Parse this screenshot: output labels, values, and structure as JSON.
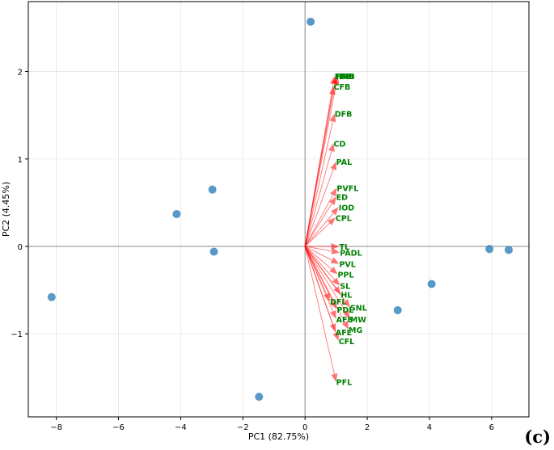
{
  "panel_label": "(c)",
  "chart_data": {
    "type": "scatter",
    "xlabel": "PC1 (82.75%)",
    "ylabel": "PC2 (4.45%)",
    "xlim": [
      -8.9,
      7.2
    ],
    "ylim": [
      -1.95,
      2.8
    ],
    "xticks": [
      -8,
      -6,
      -4,
      -2,
      0,
      2,
      4,
      6
    ],
    "yticks": [
      -1,
      0,
      1,
      2
    ],
    "grid": true,
    "colors": {
      "points": "#1f77b4",
      "arrows": "#ff0000",
      "labels": "#008000"
    },
    "scores": [
      {
        "x": 0.18,
        "y": 2.57
      },
      {
        "x": -2.98,
        "y": 0.65
      },
      {
        "x": -4.13,
        "y": 0.37
      },
      {
        "x": -2.93,
        "y": -0.06
      },
      {
        "x": -8.15,
        "y": -0.58
      },
      {
        "x": -1.48,
        "y": -1.72
      },
      {
        "x": 2.98,
        "y": -0.73
      },
      {
        "x": 4.07,
        "y": -0.43
      },
      {
        "x": 5.93,
        "y": -0.03
      },
      {
        "x": 6.55,
        "y": -0.04
      }
    ],
    "loadings": [
      {
        "name": "FFB",
        "x": 0.95,
        "y": 1.95
      },
      {
        "name": "FMB",
        "x": 1.0,
        "y": 1.95
      },
      {
        "name": "TFB",
        "x": 1.05,
        "y": 1.95
      },
      {
        "name": "CFB",
        "x": 0.92,
        "y": 1.83
      },
      {
        "name": "DFB",
        "x": 0.95,
        "y": 1.52
      },
      {
        "name": "CD",
        "x": 0.92,
        "y": 1.18
      },
      {
        "name": "PAL",
        "x": 1.0,
        "y": 0.97
      },
      {
        "name": "PVFL",
        "x": 1.02,
        "y": 0.67
      },
      {
        "name": "ED",
        "x": 1.0,
        "y": 0.57
      },
      {
        "name": "IOD",
        "x": 1.08,
        "y": 0.45
      },
      {
        "name": "CPL",
        "x": 0.98,
        "y": 0.33
      },
      {
        "name": "TL",
        "x": 1.1,
        "y": 0.0
      },
      {
        "name": "PADL",
        "x": 1.12,
        "y": -0.07
      },
      {
        "name": "PVL",
        "x": 1.1,
        "y": -0.2
      },
      {
        "name": "PPL",
        "x": 1.05,
        "y": -0.32
      },
      {
        "name": "SL",
        "x": 1.12,
        "y": -0.45
      },
      {
        "name": "HL",
        "x": 1.15,
        "y": -0.55
      },
      {
        "name": "DFL",
        "x": 0.8,
        "y": -0.63
      },
      {
        "name": "SNL",
        "x": 1.45,
        "y": -0.7
      },
      {
        "name": "PDL",
        "x": 1.02,
        "y": -0.72
      },
      {
        "name": "AFB",
        "x": 1.0,
        "y": -0.83
      },
      {
        "name": "MW",
        "x": 1.45,
        "y": -0.83
      },
      {
        "name": "MG",
        "x": 1.4,
        "y": -0.95
      },
      {
        "name": "AFL",
        "x": 0.98,
        "y": -0.98
      },
      {
        "name": "CFL",
        "x": 1.08,
        "y": -1.08
      },
      {
        "name": "PFL",
        "x": 1.0,
        "y": -1.55
      }
    ]
  }
}
